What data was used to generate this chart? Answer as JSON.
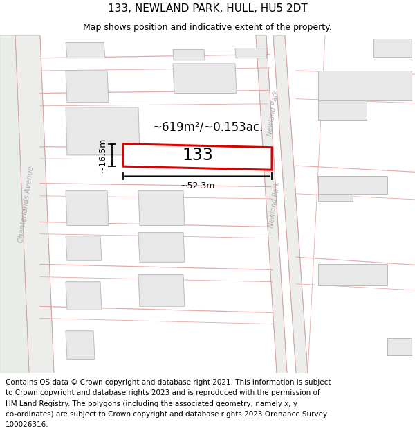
{
  "title": "133, NEWLAND PARK, HULL, HU5 2DT",
  "subtitle": "Map shows position and indicative extent of the property.",
  "footer_lines": [
    "Contains OS data © Crown copyright and database right 2021. This information is subject",
    "to Crown copyright and database rights 2023 and is reproduced with the permission of",
    "HM Land Registry. The polygons (including the associated geometry, namely x, y",
    "co-ordinates) are subject to Crown copyright and database rights 2023 Ordnance Survey",
    "100026316."
  ],
  "area_label": "~619m²/~0.153ac.",
  "width_label": "~52.3m",
  "height_label": "~16.5m",
  "property_number": "133",
  "map_bg": "#f7f4f4",
  "building_fill": "#e8e8e8",
  "building_edge": "#bbbbbb",
  "highlight_fill": "#ffffff",
  "highlight_edge": "#dd0000",
  "road_color": "#f0c8c8",
  "road_edge": "#e09090",
  "street_label_color": "#aaaaaa",
  "chanterlands_color": "#e8e8e8",
  "chanterlands_edge": "#cccccc",
  "newland_road_color": "#e8e8e8",
  "newland_road_edge": "#cccccc",
  "title_fontsize": 11,
  "subtitle_fontsize": 9,
  "footer_fontsize": 7.5,
  "dim_fontsize": 9,
  "area_fontsize": 12,
  "prop_fontsize": 17
}
